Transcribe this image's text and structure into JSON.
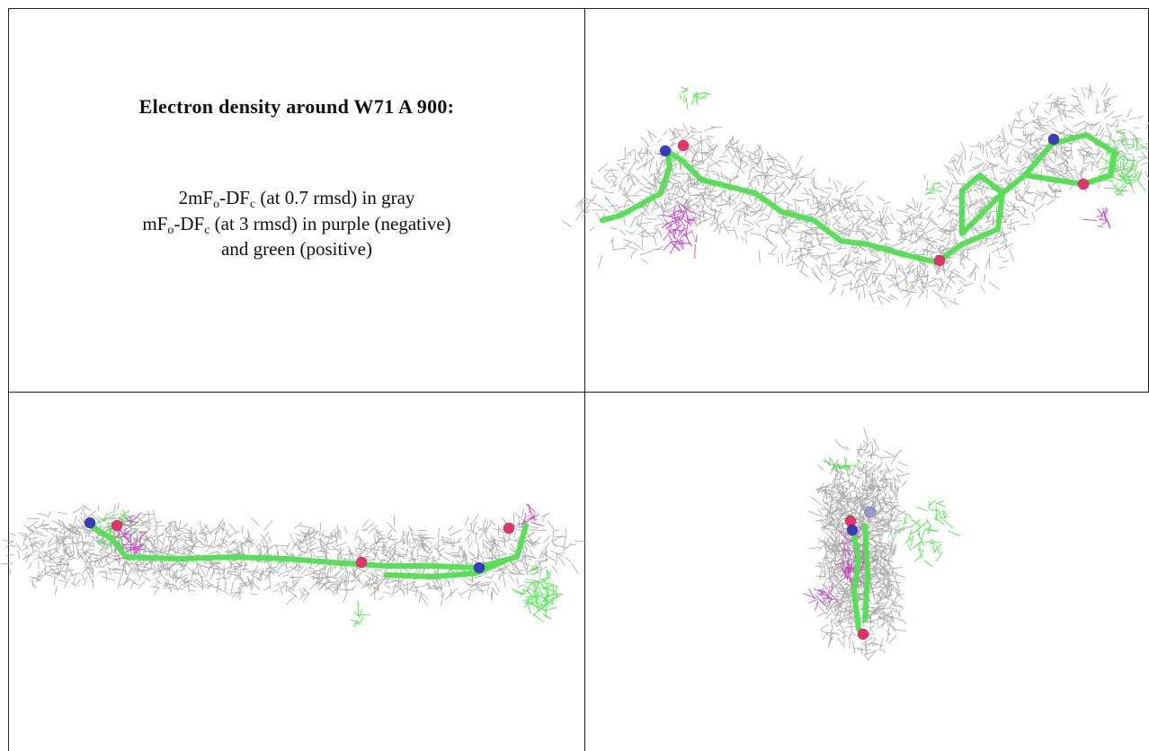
{
  "title": "Electron density around W71 A 900:",
  "caption": [
    [
      {
        "t": "2mF"
      },
      {
        "sub": "o"
      },
      {
        "t": "-DF"
      },
      {
        "sub": "c"
      },
      {
        "t": " (at 0.7 rmsd) in gray"
      }
    ],
    [
      {
        "t": "mF"
      },
      {
        "sub": "o"
      },
      {
        "t": "-DF"
      },
      {
        "sub": "c"
      },
      {
        "t": " (at 3 rmsd) in purple (negative)"
      }
    ],
    [
      {
        "t": "and green (positive)"
      }
    ]
  ]
}
